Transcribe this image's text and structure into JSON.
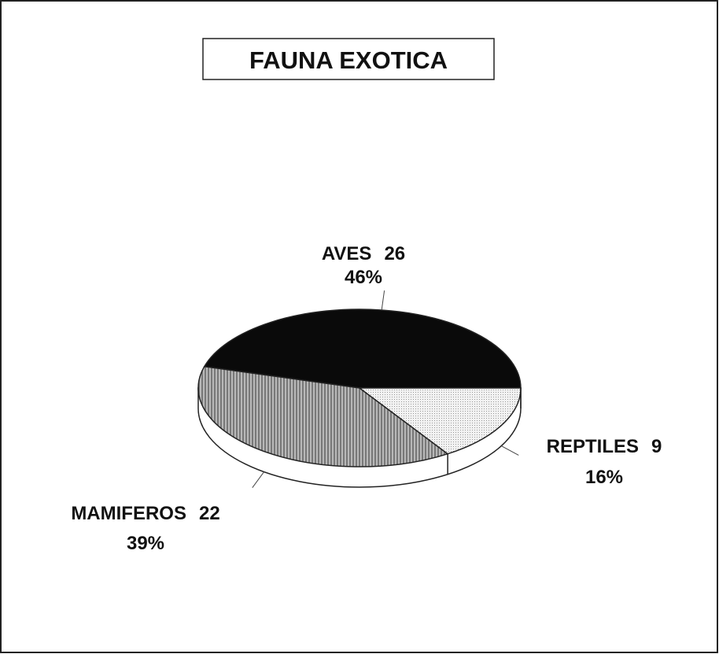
{
  "chart_data": {
    "type": "pie",
    "title": "FAUNA EXOTICA",
    "categories": [
      "AVES",
      "MAMIFEROS",
      "REPTILES"
    ],
    "values": [
      26,
      22,
      9
    ],
    "percent_labels": [
      "46%",
      "39%",
      "16%"
    ],
    "colors": [
      "#0a0a0a",
      "#9a9a9a",
      "#e6e6e6"
    ]
  }
}
